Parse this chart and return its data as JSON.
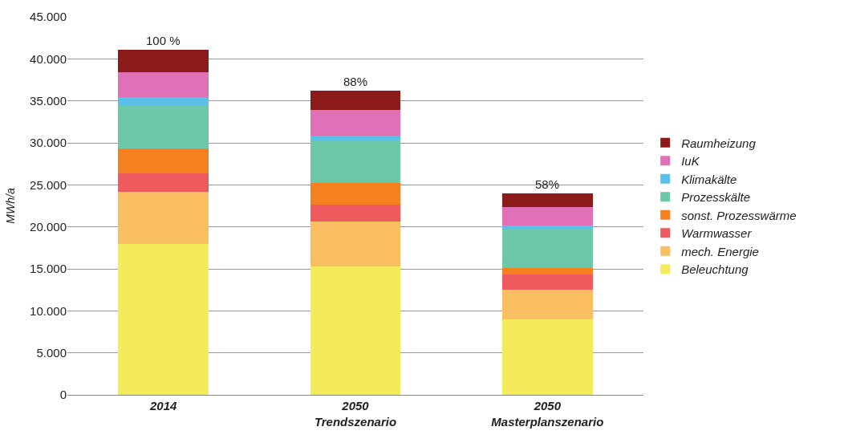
{
  "chart_data": {
    "type": "bar",
    "stacked": true,
    "ylabel": "MWh/a",
    "categories": [
      "2014",
      "2050\nTrendszenario",
      "2050\nMasterplanszenario"
    ],
    "series": [
      {
        "name": "Beleuchtung",
        "color": "#f5eb5a",
        "values": [
          18000,
          15300,
          9000
        ]
      },
      {
        "name": "mech. Energie",
        "color": "#fbbf63",
        "values": [
          6200,
          5300,
          3500
        ]
      },
      {
        "name": "Warmwasser",
        "color": "#ef5a5e",
        "values": [
          2200,
          2000,
          1800
        ]
      },
      {
        "name": "sonst. Prozesswärme",
        "color": "#f5801e",
        "values": [
          2900,
          2600,
          800
        ]
      },
      {
        "name": "Prozesskälte",
        "color": "#6cc8a8",
        "values": [
          5100,
          5100,
          4600
        ]
      },
      {
        "name": "Klimakälte",
        "color": "#5bc0e8",
        "values": [
          1000,
          600,
          500
        ]
      },
      {
        "name": "IuK",
        "color": "#e070b8",
        "values": [
          3000,
          3000,
          2200
        ]
      },
      {
        "name": "Raumheizung",
        "color": "#8b1a1a",
        "values": [
          2700,
          2300,
          1600
        ]
      }
    ],
    "annotations": [
      {
        "text": "100 %",
        "x": "2014",
        "y": 41100
      },
      {
        "text": "88%",
        "x": "2050\nTrendszenario",
        "y": 36200
      },
      {
        "text": "58%",
        "x": "2050\nMasterplanszenario",
        "y": 24000
      }
    ],
    "ylim": [
      0,
      45000
    ],
    "yticks": [
      {
        "value": 0,
        "label": "0"
      },
      {
        "value": 5000,
        "label": "5.000"
      },
      {
        "value": 10000,
        "label": "10.000"
      },
      {
        "value": 15000,
        "label": "15.000"
      },
      {
        "value": 20000,
        "label": "20.000"
      },
      {
        "value": 25000,
        "label": "25.000"
      },
      {
        "value": 30000,
        "label": "30.000"
      },
      {
        "value": 35000,
        "label": "35.000"
      },
      {
        "value": 40000,
        "label": "40.000"
      },
      {
        "value": 45000,
        "label": "45.000"
      }
    ],
    "grid": "y",
    "legend": "right"
  }
}
